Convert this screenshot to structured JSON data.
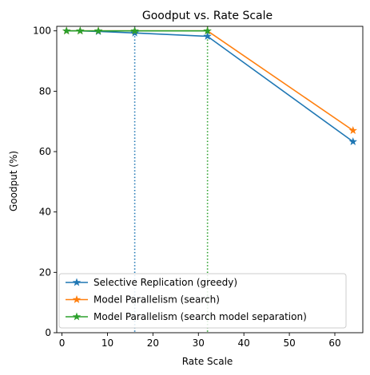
{
  "chart_data": {
    "type": "line",
    "title": "Goodput vs. Rate Scale",
    "xlabel": "Rate Scale",
    "ylabel": "Goodput (%)",
    "xlim": [
      -1.15,
      66.15
    ],
    "ylim": [
      0,
      101.5
    ],
    "xticks": [
      0,
      10,
      20,
      30,
      40,
      50,
      60
    ],
    "yticks": [
      0,
      20,
      40,
      60,
      80,
      100
    ],
    "grid": false,
    "legend_position": "lower-left",
    "series": [
      {
        "name": "Selective Replication (greedy)",
        "color": "#1f77b4",
        "marker": "star",
        "x": [
          1,
          4,
          8,
          16,
          32,
          64
        ],
        "y": [
          100,
          100,
          99.8,
          99.3,
          98.2,
          63.3
        ]
      },
      {
        "name": "Model Parallelism (search)",
        "color": "#ff7f0e",
        "marker": "star",
        "x": [
          1,
          4,
          8,
          16,
          32,
          64
        ],
        "y": [
          100,
          100,
          100,
          100,
          100,
          67
        ]
      },
      {
        "name": "Model Parallelism (search model separation)",
        "color": "#2ca02c",
        "marker": "star",
        "x": [
          1,
          4,
          8,
          16,
          32
        ],
        "y": [
          100,
          100,
          100,
          100,
          100
        ]
      }
    ],
    "vlines": [
      {
        "x": 16,
        "color": "#1f77b4",
        "style": "dotted"
      },
      {
        "x": 32,
        "color": "#2ca02c",
        "style": "dotted"
      }
    ]
  }
}
